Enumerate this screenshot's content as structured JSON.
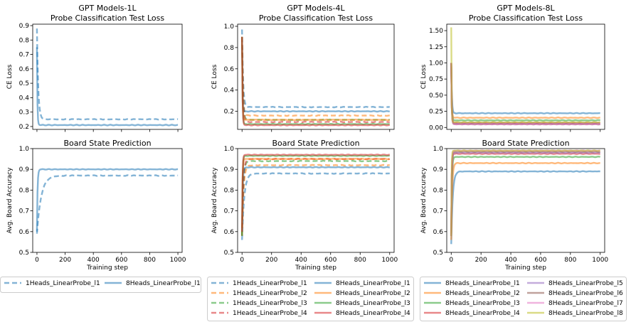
{
  "colors": {
    "1Heads_LinearProbe_l1": "#1f77b4",
    "1Heads_LinearProbe_l2": "#ff7f0e",
    "1Heads_LinearProbe_l3": "#2ca02c",
    "1Heads_LinearProbe_l4": "#d62728",
    "8Heads_LinearProbe_l1": "#1f77b4",
    "8Heads_LinearProbe_l2": "#ff7f0e",
    "8Heads_LinearProbe_l3": "#2ca02c",
    "8Heads_LinearProbe_l4": "#d62728",
    "8Heads_LinearProbe_l5": "#9467bd",
    "8Heads_LinearProbe_l6": "#8c564b",
    "8Heads_LinearProbe_l7": "#e377c2",
    "8Heads_LinearProbe_l8": "#bcbd22"
  },
  "chart_data": [
    {
      "id": "loss-1L",
      "type": "line",
      "title": [
        "GPT Models-1L",
        "Probe Classification Test Loss"
      ],
      "ylabel": "CE Loss",
      "xlabel": "",
      "xlim": [
        -30,
        1030
      ],
      "ylim": [
        0.18,
        0.91
      ],
      "xticks": [
        0,
        200,
        400,
        600,
        800,
        1000
      ],
      "xticklabels_shown": false,
      "yticks": [
        0.2,
        0.3,
        0.4,
        0.5,
        0.6,
        0.7,
        0.8,
        0.9
      ],
      "yticklabels": [
        "0.2",
        "0.3",
        "0.4",
        "0.5",
        "0.6",
        "0.7",
        "0.8",
        "0.9"
      ],
      "series": [
        {
          "name": "1Heads_LinearProbe_l1",
          "dash": true,
          "start": 0.88,
          "end": 0.25,
          "speed": 9
        },
        {
          "name": "8Heads_LinearProbe_l1",
          "dash": false,
          "start": 0.75,
          "end": 0.21,
          "speed": 3
        }
      ]
    },
    {
      "id": "loss-4L",
      "type": "line",
      "title": [
        "GPT Models-4L",
        "Probe Classification Test Loss"
      ],
      "ylabel": "CE Loss",
      "xlabel": "",
      "xlim": [
        -30,
        1030
      ],
      "ylim": [
        0.03,
        1.02
      ],
      "xticks": [
        0,
        200,
        400,
        600,
        800,
        1000
      ],
      "xticklabels_shown": false,
      "yticks": [
        0.2,
        0.4,
        0.6,
        0.8,
        1.0
      ],
      "yticklabels": [
        "0.2",
        "0.4",
        "0.6",
        "0.8",
        "1.0"
      ],
      "series": [
        {
          "name": "1Heads_LinearProbe_l1",
          "dash": true,
          "start": 0.97,
          "end": 0.24,
          "speed": 7
        },
        {
          "name": "1Heads_LinearProbe_l2",
          "dash": true,
          "start": 0.9,
          "end": 0.16,
          "speed": 6
        },
        {
          "name": "1Heads_LinearProbe_l3",
          "dash": true,
          "start": 0.9,
          "end": 0.12,
          "speed": 6
        },
        {
          "name": "1Heads_LinearProbe_l4",
          "dash": true,
          "start": 0.9,
          "end": 0.1,
          "speed": 6
        },
        {
          "name": "8Heads_LinearProbe_l1",
          "dash": false,
          "start": 0.9,
          "end": 0.2,
          "speed": 3
        },
        {
          "name": "8Heads_LinearProbe_l2",
          "dash": false,
          "start": 0.9,
          "end": 0.12,
          "speed": 3
        },
        {
          "name": "8Heads_LinearProbe_l3",
          "dash": false,
          "start": 0.9,
          "end": 0.08,
          "speed": 3
        },
        {
          "name": "8Heads_LinearProbe_l4",
          "dash": false,
          "start": 0.9,
          "end": 0.07,
          "speed": 3
        }
      ]
    },
    {
      "id": "loss-8L",
      "type": "line",
      "title": [
        "GPT Models-8L",
        "Probe Classification Test Loss"
      ],
      "ylabel": "CE Loss",
      "xlabel": "",
      "xlim": [
        -30,
        1030
      ],
      "ylim": [
        -0.03,
        1.6
      ],
      "xticks": [
        0,
        200,
        400,
        600,
        800,
        1000
      ],
      "xticklabels_shown": false,
      "yticks": [
        0.0,
        0.25,
        0.5,
        0.75,
        1.0,
        1.25,
        1.5
      ],
      "yticklabels": [
        "0.00",
        "0.25",
        "0.50",
        "0.75",
        "1.00",
        "1.25",
        "1.50"
      ],
      "series": [
        {
          "name": "8Heads_LinearProbe_l1",
          "dash": false,
          "start": 1.0,
          "end": 0.22,
          "speed": 4
        },
        {
          "name": "8Heads_LinearProbe_l2",
          "dash": false,
          "start": 1.0,
          "end": 0.15,
          "speed": 3
        },
        {
          "name": "8Heads_LinearProbe_l3",
          "dash": false,
          "start": 1.0,
          "end": 0.11,
          "speed": 3
        },
        {
          "name": "8Heads_LinearProbe_l4",
          "dash": false,
          "start": 1.0,
          "end": 0.07,
          "speed": 3
        },
        {
          "name": "8Heads_LinearProbe_l5",
          "dash": false,
          "start": 1.0,
          "end": 0.06,
          "speed": 3
        },
        {
          "name": "8Heads_LinearProbe_l6",
          "dash": false,
          "start": 1.0,
          "end": 0.05,
          "speed": 3
        },
        {
          "name": "8Heads_LinearProbe_l7",
          "dash": false,
          "start": 1.0,
          "end": 0.05,
          "speed": 3
        },
        {
          "name": "8Heads_LinearProbe_l8",
          "dash": false,
          "start": 1.55,
          "end": 0.08,
          "speed": 2
        }
      ]
    },
    {
      "id": "acc-1L",
      "type": "line",
      "title": [
        "Board State Prediction"
      ],
      "ylabel": "Avg. Board Accuracy",
      "xlabel": "Training step",
      "xlim": [
        -30,
        1030
      ],
      "ylim": [
        0.5,
        1.0
      ],
      "xticks": [
        0,
        200,
        400,
        600,
        800,
        1000
      ],
      "xticklabels_shown": true,
      "xticklabels": [
        "0",
        "200",
        "400",
        "600",
        "800",
        "1000"
      ],
      "yticks": [
        0.5,
        0.6,
        0.7,
        0.8,
        0.9,
        1.0
      ],
      "yticklabels": [
        "0.5",
        "0.6",
        "0.7",
        "0.8",
        "0.9",
        "1.0"
      ],
      "series": [
        {
          "name": "1Heads_LinearProbe_l1",
          "dash": true,
          "start": 0.59,
          "end": 0.87,
          "speed": 30
        },
        {
          "name": "8Heads_LinearProbe_l1",
          "dash": false,
          "start": 0.6,
          "end": 0.9,
          "speed": 4
        }
      ]
    },
    {
      "id": "acc-4L",
      "type": "line",
      "title": [
        "Board State Prediction"
      ],
      "ylabel": "Avg. Board Accuracy",
      "xlabel": "Training step",
      "xlim": [
        -30,
        1030
      ],
      "ylim": [
        0.5,
        1.0
      ],
      "xticks": [
        0,
        200,
        400,
        600,
        800,
        1000
      ],
      "xticklabels_shown": true,
      "xticklabels": [
        "0",
        "200",
        "400",
        "600",
        "800",
        "1000"
      ],
      "yticks": [
        0.5,
        0.6,
        0.7,
        0.8,
        0.9,
        1.0
      ],
      "yticklabels": [
        "0.5",
        "0.6",
        "0.7",
        "0.8",
        "0.9",
        "1.0"
      ],
      "series": [
        {
          "name": "1Heads_LinearProbe_l1",
          "dash": true,
          "start": 0.56,
          "end": 0.88,
          "speed": 15
        },
        {
          "name": "1Heads_LinearProbe_l2",
          "dash": true,
          "start": 0.58,
          "end": 0.92,
          "speed": 10
        },
        {
          "name": "1Heads_LinearProbe_l3",
          "dash": true,
          "start": 0.58,
          "end": 0.94,
          "speed": 8
        },
        {
          "name": "1Heads_LinearProbe_l4",
          "dash": true,
          "start": 0.58,
          "end": 0.95,
          "speed": 8
        },
        {
          "name": "8Heads_LinearProbe_l1",
          "dash": false,
          "start": 0.58,
          "end": 0.91,
          "speed": 4
        },
        {
          "name": "8Heads_LinearProbe_l2",
          "dash": false,
          "start": 0.58,
          "end": 0.95,
          "speed": 3
        },
        {
          "name": "8Heads_LinearProbe_l3",
          "dash": false,
          "start": 0.58,
          "end": 0.965,
          "speed": 3
        },
        {
          "name": "8Heads_LinearProbe_l4",
          "dash": false,
          "start": 0.6,
          "end": 0.97,
          "speed": 3
        }
      ]
    },
    {
      "id": "acc-8L",
      "type": "line",
      "title": [
        "Board State Prediction"
      ],
      "ylabel": "Avg. Board Accuracy",
      "xlabel": "Training step",
      "xlim": [
        -30,
        1030
      ],
      "ylim": [
        0.5,
        1.0
      ],
      "xticks": [
        0,
        200,
        400,
        600,
        800,
        1000
      ],
      "xticklabels_shown": true,
      "xticklabels": [
        "0",
        "200",
        "400",
        "600",
        "800",
        "1000"
      ],
      "yticks": [
        0.5,
        0.6,
        0.7,
        0.8,
        0.9,
        1.0
      ],
      "yticklabels": [
        "0.5",
        "0.6",
        "0.7",
        "0.8",
        "0.9",
        "1.0"
      ],
      "series": [
        {
          "name": "8Heads_LinearProbe_l1",
          "dash": false,
          "start": 0.54,
          "end": 0.89,
          "speed": 10
        },
        {
          "name": "8Heads_LinearProbe_l2",
          "dash": false,
          "start": 0.56,
          "end": 0.93,
          "speed": 6
        },
        {
          "name": "8Heads_LinearProbe_l3",
          "dash": false,
          "start": 0.58,
          "end": 0.96,
          "speed": 4
        },
        {
          "name": "8Heads_LinearProbe_l4",
          "dash": false,
          "start": 0.58,
          "end": 0.975,
          "speed": 3
        },
        {
          "name": "8Heads_LinearProbe_l5",
          "dash": false,
          "start": 0.58,
          "end": 0.98,
          "speed": 3
        },
        {
          "name": "8Heads_LinearProbe_l6",
          "dash": false,
          "start": 0.58,
          "end": 0.985,
          "speed": 3
        },
        {
          "name": "8Heads_LinearProbe_l7",
          "dash": false,
          "start": 0.58,
          "end": 0.99,
          "speed": 3
        },
        {
          "name": "8Heads_LinearProbe_l8",
          "dash": false,
          "start": 0.58,
          "end": 0.99,
          "speed": 2
        }
      ]
    }
  ],
  "legends": [
    {
      "id": "legend-1L",
      "columns": [
        [
          "1Heads_LinearProbe_l1"
        ],
        [
          "8Heads_LinearProbe_l1"
        ]
      ]
    },
    {
      "id": "legend-4L",
      "columns": [
        [
          "1Heads_LinearProbe_l1",
          "1Heads_LinearProbe_l2",
          "1Heads_LinearProbe_l3",
          "1Heads_LinearProbe_l4"
        ],
        [
          "8Heads_LinearProbe_l1",
          "8Heads_LinearProbe_l2",
          "8Heads_LinearProbe_l3",
          "8Heads_LinearProbe_l4"
        ]
      ]
    },
    {
      "id": "legend-8L",
      "columns": [
        [
          "8Heads_LinearProbe_l1",
          "8Heads_LinearProbe_l2",
          "8Heads_LinearProbe_l3",
          "8Heads_LinearProbe_l4"
        ],
        [
          "8Heads_LinearProbe_l5",
          "8Heads_LinearProbe_l6",
          "8Heads_LinearProbe_l7",
          "8Heads_LinearProbe_l8"
        ]
      ]
    }
  ]
}
